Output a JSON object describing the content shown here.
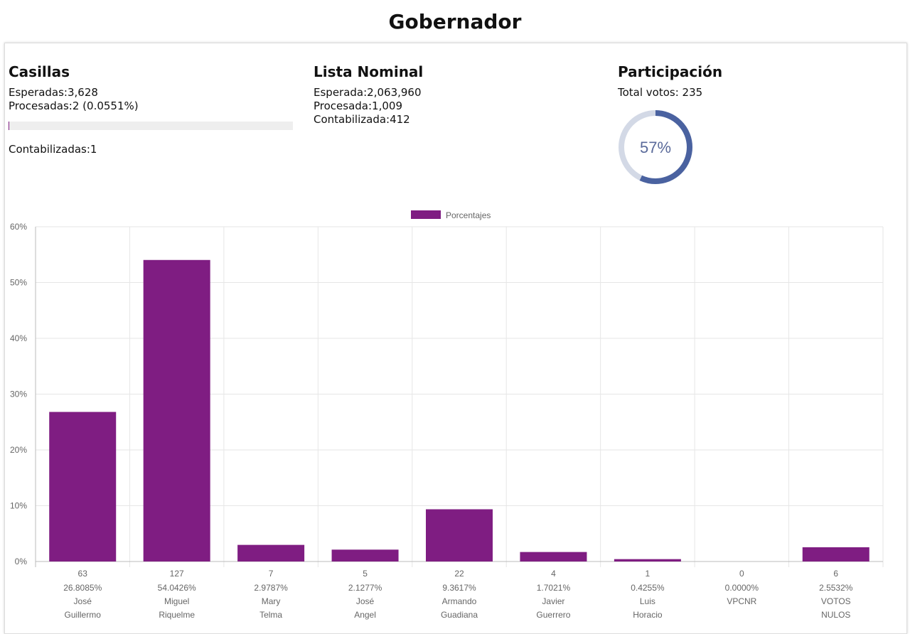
{
  "title": "Gobernador",
  "casillas": {
    "heading": "Casillas",
    "esperadas": "Esperadas:3,628",
    "procesadas": "Procesadas:2 (0.0551%)",
    "progress_percent": 0.0551,
    "contabilizadas": "Contabilizadas:1"
  },
  "lista": {
    "heading": "Lista Nominal",
    "esperada": "Esperada:2,063,960",
    "procesada": "Procesada:1,009",
    "contabilizada": "Contabilizada:412"
  },
  "participacion": {
    "heading": "Participación",
    "total": "Total votos: 235",
    "percent_label": "57%",
    "percent": 57,
    "colors": {
      "fill": "#4a62a0",
      "track": "#d3d9e6"
    }
  },
  "chart_data": {
    "type": "bar",
    "legend": "Porcentajes",
    "legend_position": "top",
    "color": "#7f1d82",
    "ylim": [
      0,
      60
    ],
    "yticks": [
      "0%",
      "10%",
      "20%",
      "30%",
      "40%",
      "50%",
      "60%"
    ],
    "categories": [
      {
        "votes": "63",
        "pct": "26.8085%",
        "name": [
          "José",
          "Guillermo"
        ],
        "value": 26.8085
      },
      {
        "votes": "127",
        "pct": "54.0426%",
        "name": [
          "Miguel",
          "Riquelme"
        ],
        "value": 54.0426
      },
      {
        "votes": "7",
        "pct": "2.9787%",
        "name": [
          "Mary",
          "Telma"
        ],
        "value": 2.9787
      },
      {
        "votes": "5",
        "pct": "2.1277%",
        "name": [
          "José",
          "Angel"
        ],
        "value": 2.1277
      },
      {
        "votes": "22",
        "pct": "9.3617%",
        "name": [
          "Armando",
          "Guadiana"
        ],
        "value": 9.3617
      },
      {
        "votes": "4",
        "pct": "1.7021%",
        "name": [
          "Javier",
          "Guerrero"
        ],
        "value": 1.7021
      },
      {
        "votes": "1",
        "pct": "0.4255%",
        "name": [
          "Luis",
          "Horacio"
        ],
        "value": 0.4255
      },
      {
        "votes": "0",
        "pct": "0.0000%",
        "name": [
          "VPCNR"
        ],
        "value": 0
      },
      {
        "votes": "6",
        "pct": "2.5532%",
        "name": [
          "VOTOS",
          "NULOS"
        ],
        "value": 2.5532
      }
    ]
  }
}
